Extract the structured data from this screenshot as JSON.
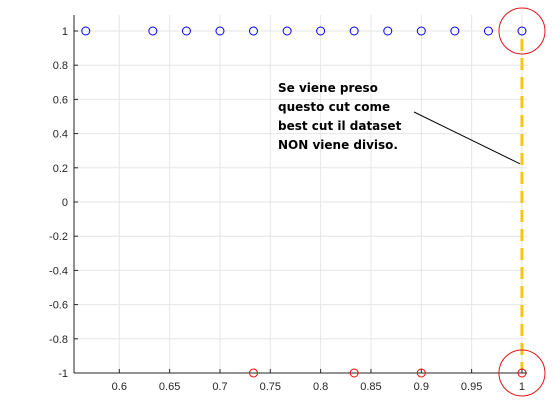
{
  "chart_data": {
    "type": "scatter",
    "xlim": [
      0.555,
      1.005
    ],
    "ylim": [
      -1,
      1
    ],
    "grid": true,
    "x_ticks": [
      0.6,
      0.65,
      0.7,
      0.75,
      0.8,
      0.85,
      0.9,
      0.95,
      1
    ],
    "x_tick_labels": [
      "0.6",
      "0.65",
      "0.7",
      "0.75",
      "0.8",
      "0.85",
      "0.9",
      "0.95",
      "1"
    ],
    "y_ticks": [
      1,
      0.8,
      0.6,
      0.4,
      0.2,
      0,
      -0.2,
      -0.4,
      -0.6,
      -0.8,
      -1
    ],
    "y_tick_labels": [
      "1",
      "0.8",
      "0.6",
      "0.4",
      "0.2",
      "0",
      "-0.2",
      "-0.4",
      "-0.6",
      "-0.8",
      "-1"
    ],
    "series": [
      {
        "color": "#0000ff",
        "marker": "circle-open",
        "x": [
          0.5667,
          0.6333,
          0.6667,
          0.7,
          0.7333,
          0.7667,
          0.8,
          0.8333,
          0.8667,
          0.9,
          0.9333,
          0.9667,
          1.0
        ],
        "y": [
          1,
          1,
          1,
          1,
          1,
          1,
          1,
          1,
          1,
          1,
          1,
          1,
          1
        ]
      },
      {
        "color": "#ff0000",
        "marker": "circle-open",
        "x": [
          0.7333,
          0.8333,
          0.9,
          1.0
        ],
        "y": [
          -1,
          -1,
          -1,
          -1
        ]
      }
    ],
    "cut_line": {
      "x": 1.0,
      "y_range": [
        -1,
        1
      ],
      "color": "#f5c518",
      "style": "dashed"
    },
    "highlight_circles": [
      {
        "x": 1.0,
        "y": 1,
        "color": "#e0161b"
      },
      {
        "x": 1.0,
        "y": -1,
        "color": "#e0161b"
      }
    ],
    "annotation": {
      "lines": [
        "Se viene preso",
        "questo cut come",
        "best cut il dataset",
        "NON viene diviso."
      ],
      "arrow_target": {
        "x": 1.0,
        "y": 0.2
      }
    }
  }
}
